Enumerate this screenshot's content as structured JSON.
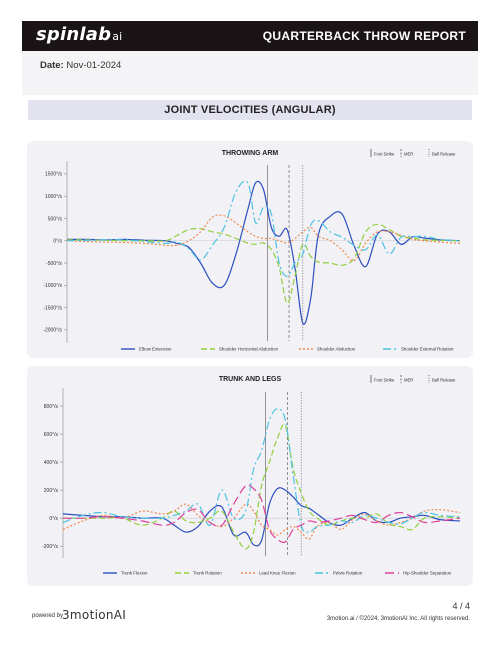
{
  "header": {
    "logo_main": "spinlab",
    "logo_suffix": "ai",
    "report_title": "QUARTERBACK THROW REPORT"
  },
  "date": {
    "label": "Date:",
    "value": "Nov-01-2024"
  },
  "section_title": "JOINT VELOCITIES (ANGULAR)",
  "footer": {
    "page": "4 / 4",
    "powered_by": "powered by",
    "brand": "3motionAI",
    "copyright": "3motion.ai  /  ©2024, 3motionAI Inc. All rights reserved."
  },
  "marker_legend": [
    "Foot Strike",
    "MER",
    "Ball Release"
  ],
  "chart_data": [
    {
      "type": "line",
      "title": "THROWING ARM",
      "ylim": [
        -2250,
        1700
      ],
      "xlim": [
        0,
        1
      ],
      "yticks": [
        1500,
        1000,
        500,
        0,
        -500,
        -1000,
        -1500,
        -2000
      ],
      "ytick_labels": [
        "1500°/s",
        "1000°/s",
        "500°/s",
        "0°/s",
        "-500°/s",
        "-1000°/s",
        "-1500°/s",
        "-2000°/s"
      ],
      "events": [
        0.51,
        0.565,
        0.6
      ],
      "x": [
        0,
        0.05,
        0.1,
        0.15,
        0.2,
        0.25,
        0.28,
        0.31,
        0.34,
        0.37,
        0.4,
        0.43,
        0.46,
        0.48,
        0.5,
        0.52,
        0.54,
        0.56,
        0.58,
        0.6,
        0.62,
        0.64,
        0.67,
        0.7,
        0.73,
        0.76,
        0.79,
        0.82,
        0.85,
        0.88,
        0.91,
        0.95,
        1.0
      ],
      "series": [
        {
          "name": "Elbow Extension",
          "color": "#2c4fbf",
          "dash": "",
          "values": [
            30,
            30,
            20,
            30,
            10,
            0,
            -60,
            -150,
            -500,
            -950,
            -1000,
            -300,
            700,
            1300,
            1150,
            300,
            100,
            250,
            -600,
            -1850,
            -1300,
            150,
            550,
            600,
            -100,
            -580,
            150,
            200,
            -80,
            90,
            60,
            20,
            0
          ]
        },
        {
          "name": "Shoulder Horizontal Abduction",
          "color": "#92cf3c",
          "dash": "6 3",
          "values": [
            20,
            20,
            10,
            0,
            0,
            0,
            120,
            250,
            270,
            200,
            150,
            50,
            -50,
            -80,
            -50,
            -200,
            -600,
            -1400,
            -800,
            -80,
            -350,
            -480,
            -500,
            -550,
            -400,
            200,
            370,
            250,
            100,
            60,
            20,
            10,
            0
          ]
        },
        {
          "name": "Shoulder Abduction",
          "color": "#f08a4b",
          "dash": "2 2",
          "values": [
            0,
            -20,
            -30,
            -40,
            -60,
            -100,
            -100,
            0,
            200,
            530,
            560,
            400,
            200,
            100,
            50,
            50,
            0,
            -50,
            50,
            200,
            300,
            100,
            0,
            -200,
            -450,
            -50,
            200,
            200,
            120,
            30,
            0,
            -30,
            -60
          ]
        },
        {
          "name": "Shoulder External Rotation",
          "color": "#4dc3e0",
          "dash": "8 3 2 3",
          "values": [
            0,
            10,
            20,
            20,
            -20,
            -60,
            -30,
            -180,
            -430,
            -100,
            300,
            1100,
            1300,
            400,
            750,
            600,
            -500,
            -800,
            -500,
            -300,
            350,
            450,
            200,
            80,
            -100,
            -200,
            130,
            -300,
            80,
            90,
            100,
            30,
            0
          ]
        }
      ]
    },
    {
      "type": "line",
      "title": "TRUNK AND LEGS",
      "ylim": [
        -270,
        900
      ],
      "xlim": [
        0,
        1
      ],
      "yticks": [
        800,
        600,
        400,
        200,
        0,
        -200
      ],
      "ytick_labels": [
        "800°/s",
        "600°/s",
        "400°/s",
        "200°/s",
        "0°/s",
        "-200°/s"
      ],
      "events": [
        0.51,
        0.565,
        0.6
      ],
      "x": [
        0,
        0.05,
        0.1,
        0.15,
        0.2,
        0.25,
        0.28,
        0.31,
        0.34,
        0.37,
        0.4,
        0.43,
        0.46,
        0.48,
        0.5,
        0.52,
        0.54,
        0.56,
        0.58,
        0.6,
        0.62,
        0.64,
        0.67,
        0.7,
        0.73,
        0.76,
        0.79,
        0.82,
        0.85,
        0.88,
        0.91,
        0.95,
        1.0
      ],
      "series": [
        {
          "name": "Trunk Flexion",
          "color": "#2c4fbf",
          "dash": "",
          "values": [
            30,
            20,
            10,
            10,
            0,
            0,
            -50,
            -100,
            -60,
            50,
            80,
            -120,
            -100,
            -190,
            -160,
            100,
            210,
            200,
            150,
            90,
            70,
            30,
            -30,
            -50,
            0,
            40,
            -20,
            -30,
            0,
            10,
            20,
            -10,
            -20
          ]
        },
        {
          "name": "Trunk Rotation",
          "color": "#92cf3c",
          "dash": "6 3",
          "values": [
            0,
            0,
            0,
            0,
            -50,
            0,
            50,
            -20,
            -30,
            0,
            50,
            -100,
            -220,
            -100,
            230,
            400,
            570,
            660,
            350,
            180,
            50,
            0,
            -50,
            -20,
            0,
            0,
            30,
            -40,
            -60,
            -80,
            0,
            10,
            0
          ]
        },
        {
          "name": "Lead Knee Flexion",
          "color": "#f08a4b",
          "dash": "2 2",
          "values": [
            -80,
            -20,
            20,
            0,
            50,
            30,
            50,
            100,
            20,
            -30,
            -60,
            0,
            100,
            50,
            -50,
            -80,
            -120,
            -80,
            -60,
            -100,
            -150,
            -60,
            -30,
            -80,
            -10,
            30,
            -20,
            -50,
            -30,
            0,
            50,
            60,
            40
          ]
        },
        {
          "name": "Pelvis Rotation",
          "color": "#4dc3e0",
          "dash": "8 3 2 3",
          "values": [
            -30,
            20,
            40,
            10,
            0,
            0,
            20,
            50,
            100,
            -50,
            200,
            0,
            50,
            350,
            480,
            700,
            780,
            700,
            300,
            -50,
            -100,
            -60,
            -50,
            -20,
            -30,
            20,
            0,
            -30,
            -40,
            0,
            40,
            20,
            10
          ]
        },
        {
          "name": "Hip-Shoulder Separation",
          "color": "#e0409a",
          "dash": "9 4",
          "values": [
            0,
            0,
            10,
            0,
            -20,
            -50,
            -30,
            40,
            60,
            -30,
            -50,
            100,
            230,
            210,
            130,
            -80,
            -150,
            -170,
            -80,
            -50,
            -20,
            -30,
            -20,
            0,
            20,
            -10,
            -30,
            20,
            40,
            10,
            -30,
            -20,
            0
          ]
        }
      ]
    }
  ]
}
